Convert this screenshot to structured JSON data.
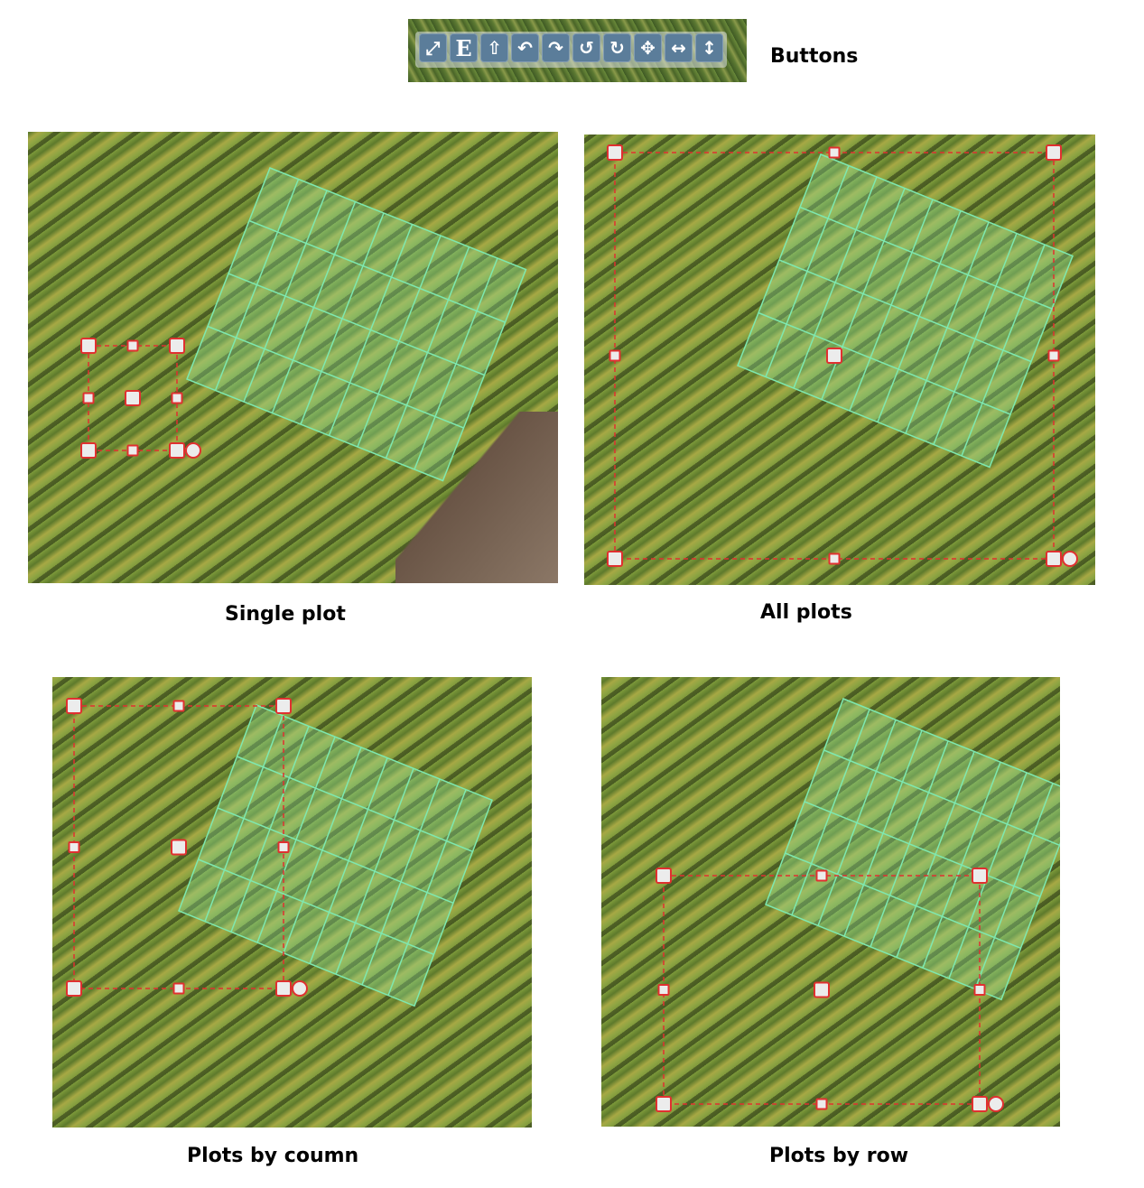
{
  "buttons_label": "Buttons",
  "toolbar": [
    {
      "name": "resize-icon",
      "glyph": "⤢"
    },
    {
      "name": "edit-e-icon",
      "glyph": "E"
    },
    {
      "name": "up-arrow-icon",
      "glyph": "⇧"
    },
    {
      "name": "undo-icon",
      "glyph": "↶"
    },
    {
      "name": "redo-icon",
      "glyph": "↷"
    },
    {
      "name": "rotate-ccw-icon",
      "glyph": "↺"
    },
    {
      "name": "rotate-cw-icon",
      "glyph": "↻"
    },
    {
      "name": "move-icon",
      "glyph": "✥"
    },
    {
      "name": "horizontal-arrows-icon",
      "glyph": "↔"
    },
    {
      "name": "vertical-arrows-icon",
      "glyph": "↕"
    }
  ],
  "panels": [
    {
      "name": "single-plot",
      "caption": "Single plot"
    },
    {
      "name": "all-plots",
      "caption": "All plots"
    },
    {
      "name": "plots-by-column",
      "caption": "Plots by coumn"
    },
    {
      "name": "plots-by-row",
      "caption": "Plots by row"
    }
  ],
  "colors": {
    "grid": "#7ee8b0",
    "handle": "#e03030",
    "handle_fill": "#ececec",
    "field_overlay": "#8fe09a"
  }
}
